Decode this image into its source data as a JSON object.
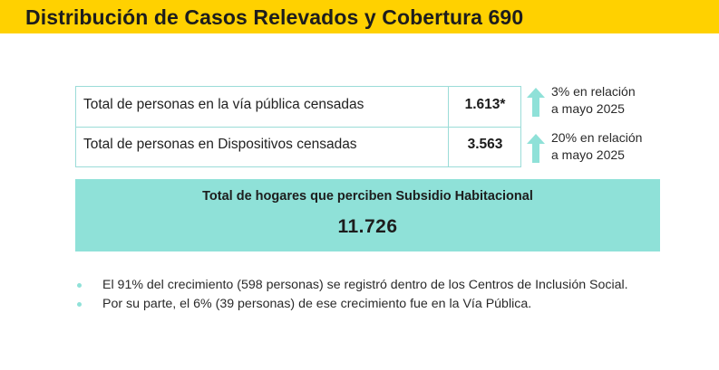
{
  "header": {
    "title": "Distribución de Casos Relevados y Cobertura 690",
    "background_color": "#ffd100"
  },
  "table": {
    "rows": [
      {
        "label": "Total de personas en la vía pública censadas",
        "value": "1.613*",
        "change_line_1": "3% en relación",
        "change_line_2": "a mayo 2025",
        "change_icon": "arrow-up-icon"
      },
      {
        "label": "Total de personas en Dispositivos censadas",
        "value": "3.563",
        "change_line_1": "20% en relación",
        "change_line_2": "a mayo 2025",
        "change_icon": "arrow-up-icon"
      }
    ]
  },
  "highlight": {
    "label": "Total de hogares que perciben Subsidio Habitacional",
    "value": "11.726",
    "background_color": "#8fe1d8"
  },
  "notes": [
    "El 91% del crecimiento (598 personas) se registró dentro de los Centros de Inclusión Social.",
    "Por su parte, el 6% (39 personas) de ese crecimiento fue en la Vía Pública."
  ],
  "colors": {
    "accent": "#8fe1d8",
    "border": "#9bdcd8",
    "arrow": "#8fe1d8"
  }
}
